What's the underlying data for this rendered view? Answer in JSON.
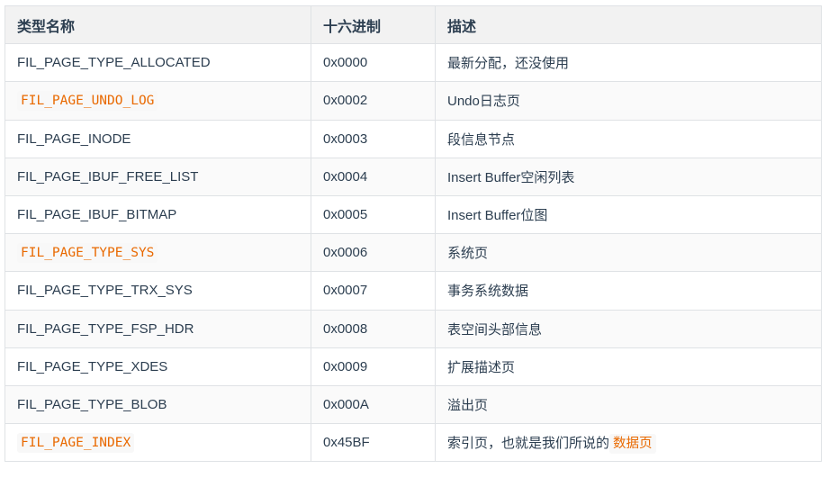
{
  "table": {
    "headers": [
      "类型名称",
      "十六进制",
      "描述"
    ],
    "rows": [
      {
        "name": "FIL_PAGE_TYPE_ALLOCATED",
        "code": false,
        "hex": "0x0000",
        "desc": "最新分配，还没使用",
        "desc_code": ""
      },
      {
        "name": "FIL_PAGE_UNDO_LOG",
        "code": true,
        "hex": "0x0002",
        "desc": "Undo日志页",
        "desc_code": ""
      },
      {
        "name": "FIL_PAGE_INODE",
        "code": false,
        "hex": "0x0003",
        "desc": "段信息节点",
        "desc_code": ""
      },
      {
        "name": "FIL_PAGE_IBUF_FREE_LIST",
        "code": false,
        "hex": "0x0004",
        "desc": "Insert Buffer空闲列表",
        "desc_code": ""
      },
      {
        "name": "FIL_PAGE_IBUF_BITMAP",
        "code": false,
        "hex": "0x0005",
        "desc": "Insert Buffer位图",
        "desc_code": ""
      },
      {
        "name": "FIL_PAGE_TYPE_SYS",
        "code": true,
        "hex": "0x0006",
        "desc": "系统页",
        "desc_code": ""
      },
      {
        "name": "FIL_PAGE_TYPE_TRX_SYS",
        "code": false,
        "hex": "0x0007",
        "desc": "事务系统数据",
        "desc_code": ""
      },
      {
        "name": "FIL_PAGE_TYPE_FSP_HDR",
        "code": false,
        "hex": "0x0008",
        "desc": "表空间头部信息",
        "desc_code": ""
      },
      {
        "name": "FIL_PAGE_TYPE_XDES",
        "code": false,
        "hex": "0x0009",
        "desc": "扩展描述页",
        "desc_code": ""
      },
      {
        "name": "FIL_PAGE_TYPE_BLOB",
        "code": false,
        "hex": "0x000A",
        "desc": "溢出页",
        "desc_code": ""
      },
      {
        "name": "FIL_PAGE_INDEX",
        "code": true,
        "hex": "0x45BF",
        "desc": "索引页，也就是我们所说的",
        "desc_code": "数据页"
      }
    ]
  },
  "colors": {
    "code_text": "#e96900",
    "code_bg": "#f8f8f8",
    "header_bg": "#f2f2f2",
    "border": "#dfe2e5"
  }
}
